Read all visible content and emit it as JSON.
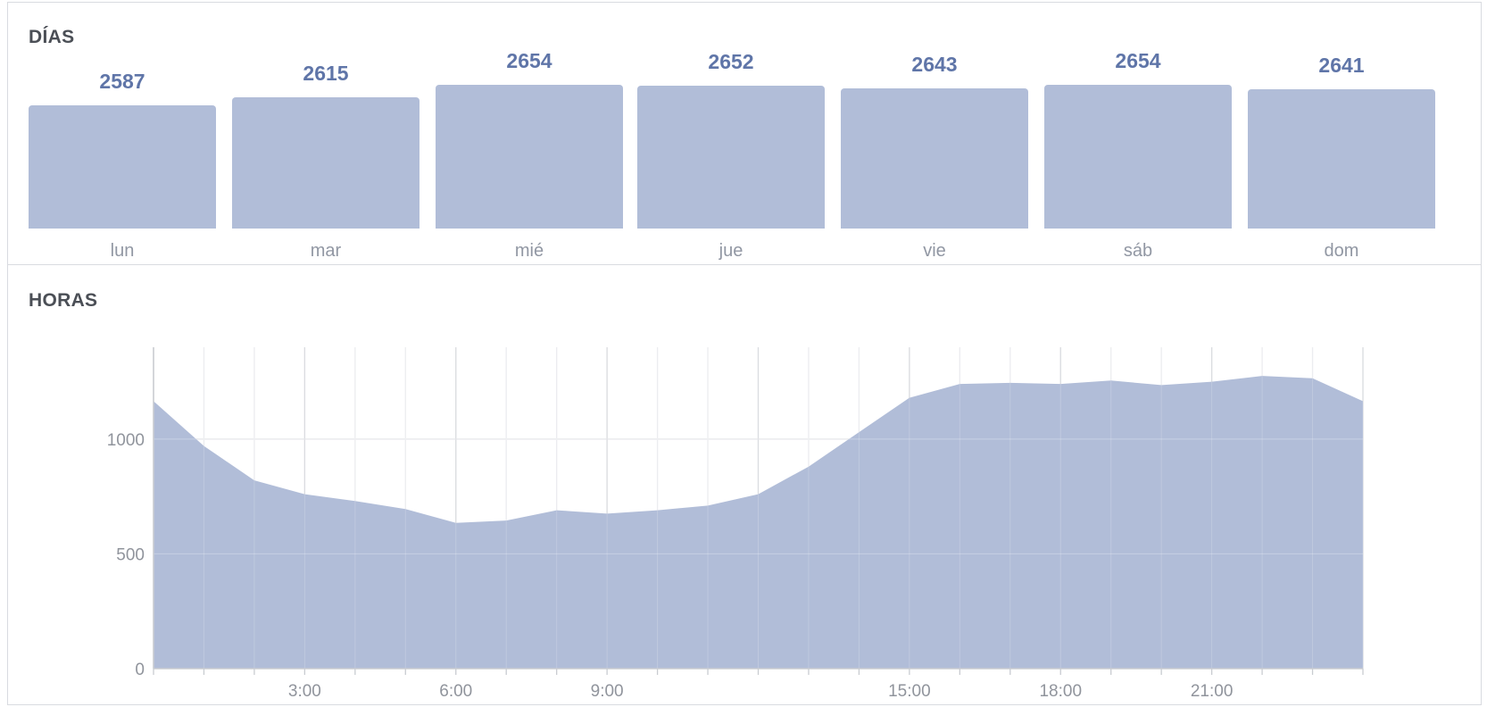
{
  "colors": {
    "bar": "#b1bdd8",
    "value_text": "#5f75a8",
    "label_text": "#9197a3",
    "title_text": "#4b4f56",
    "grid": "#e5e6e9"
  },
  "days_section": {
    "title": "DÍAS"
  },
  "hours_section": {
    "title": "HORAS"
  },
  "chart_data": [
    {
      "type": "bar",
      "title": "DÍAS",
      "categories": [
        "lun",
        "mar",
        "mié",
        "jue",
        "vie",
        "sáb",
        "dom"
      ],
      "values": [
        2587,
        2615,
        2654,
        2652,
        2643,
        2654,
        2641
      ],
      "data_labels": [
        "2587",
        "2615",
        "2654",
        "2652",
        "2643",
        "2654",
        "2641"
      ]
    },
    {
      "type": "area",
      "title": "HORAS",
      "x": [
        0,
        1,
        2,
        3,
        4,
        5,
        6,
        7,
        8,
        9,
        10,
        11,
        12,
        13,
        14,
        15,
        16,
        17,
        18,
        19,
        20,
        21,
        22,
        23,
        24
      ],
      "values": [
        1165,
        970,
        820,
        760,
        730,
        695,
        635,
        645,
        690,
        675,
        690,
        710,
        760,
        880,
        1030,
        1180,
        1240,
        1245,
        1240,
        1255,
        1235,
        1250,
        1275,
        1265,
        1165
      ],
      "ylim": [
        0,
        1400
      ],
      "yticks": [
        0,
        500,
        1000
      ],
      "ytick_labels": [
        "0",
        "500",
        "1000"
      ],
      "xticks": [
        3,
        6,
        9,
        15,
        18,
        21
      ],
      "xtick_labels": [
        "3:00",
        "6:00",
        "9:00",
        "15:00",
        "18:00",
        "21:00"
      ],
      "grid": true
    }
  ]
}
